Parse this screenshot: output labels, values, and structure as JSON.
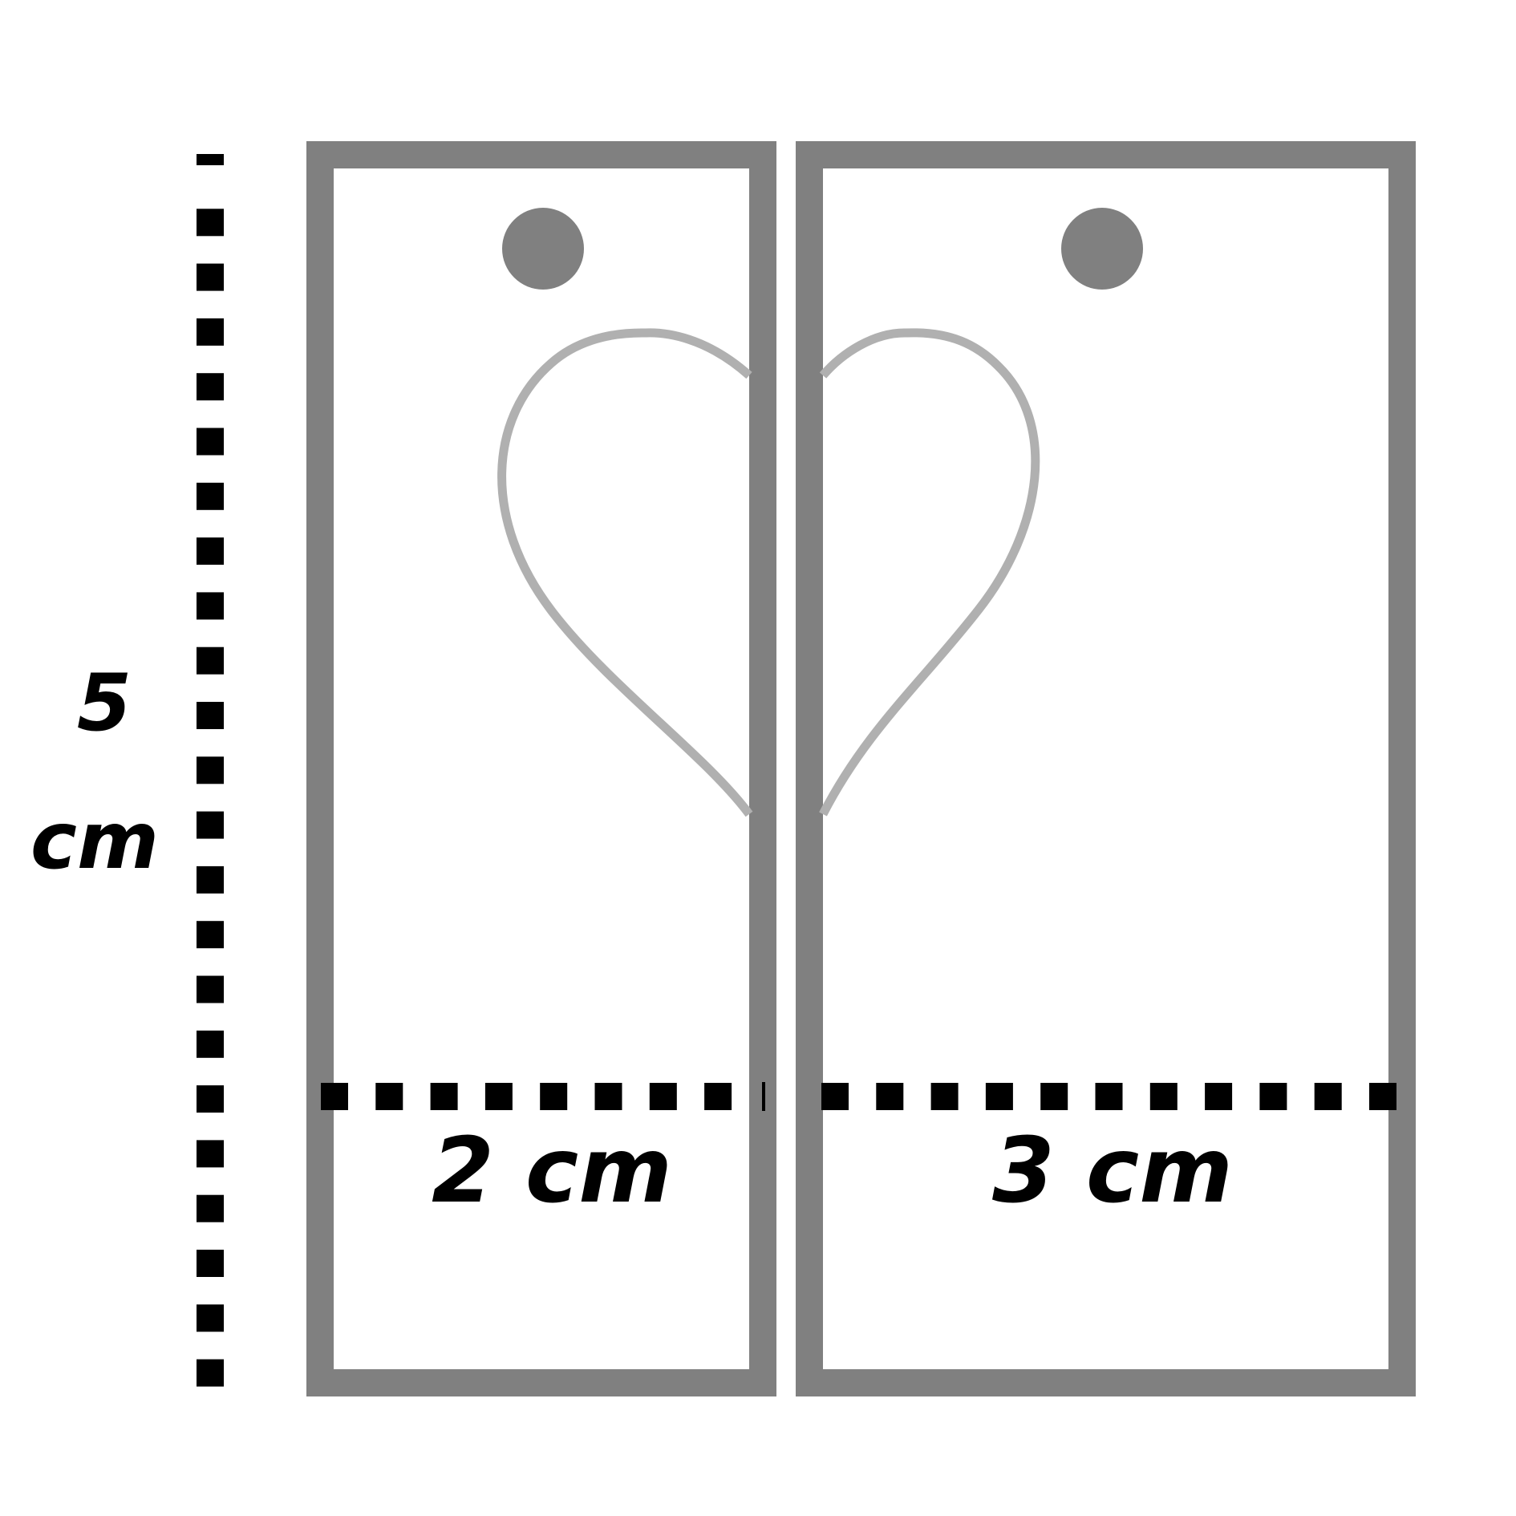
{
  "labels": {
    "height_value": "5",
    "height_unit": "cm",
    "left_width": "2 cm",
    "right_width": "3 cm"
  },
  "colors": {
    "frame": "#808080",
    "heart": "#b0b0b0",
    "dots": "#000000",
    "background": "#ffffff"
  }
}
